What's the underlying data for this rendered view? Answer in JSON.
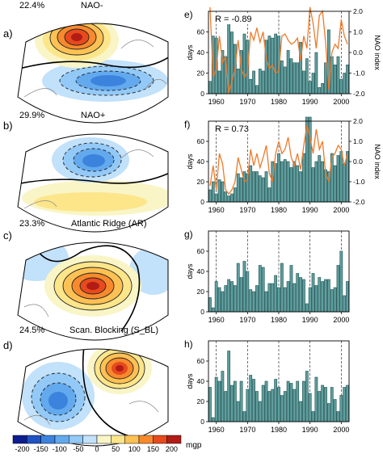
{
  "maps": [
    {
      "letter": "a)",
      "percent": "22.4%",
      "title": "NAO-"
    },
    {
      "letter": "b)",
      "percent": "29.9%",
      "title": "NAO+"
    },
    {
      "letter": "c)",
      "percent": "23.3%",
      "title": "Atlantic Ridge (AR)"
    },
    {
      "letter": "d)",
      "percent": "24.5%",
      "title": "Scan. Blocking (S_BL)"
    }
  ],
  "colorbar": {
    "ticks": [
      "-200",
      "-150",
      "-100",
      "-50",
      "0",
      "50",
      "100",
      "150",
      "200"
    ],
    "unit": "mgp",
    "colors": [
      "#0c1d8f",
      "#1f52c2",
      "#3c83dd",
      "#63a9ee",
      "#93c9f6",
      "#c2e1fa",
      "#f9f5c6",
      "#fde58a",
      "#fdc154",
      "#f88a2d",
      "#e64a1d",
      "#b11c17"
    ]
  },
  "chart_data": [
    {
      "type": "bar",
      "panel": "e)",
      "ylabel": "days",
      "y2label": "NAO index",
      "annotation": "R = -0.89",
      "x": [
        1958,
        1959,
        1960,
        1961,
        1962,
        1963,
        1964,
        1965,
        1966,
        1967,
        1968,
        1969,
        1970,
        1971,
        1972,
        1973,
        1974,
        1975,
        1976,
        1977,
        1978,
        1979,
        1980,
        1981,
        1982,
        1983,
        1984,
        1985,
        1986,
        1987,
        1988,
        1989,
        1990,
        1991,
        1992,
        1993,
        1994,
        1995,
        1996,
        1997,
        1998,
        1999,
        2000,
        2001,
        2002
      ],
      "values": [
        12,
        56,
        54,
        22,
        42,
        36,
        70,
        60,
        48,
        24,
        42,
        58,
        52,
        14,
        22,
        8,
        24,
        22,
        52,
        56,
        54,
        58,
        56,
        32,
        26,
        42,
        34,
        30,
        30,
        50,
        22,
        34,
        12,
        20,
        40,
        6,
        10,
        30,
        62,
        36,
        28,
        36,
        14,
        20,
        28
      ],
      "line_values": [
        2.2,
        -1.2,
        -0.8,
        0.8,
        -0.5,
        -0.2,
        -2.0,
        -1.4,
        -0.8,
        0.6,
        -0.8,
        -1.2,
        -1.0,
        1.0,
        0.6,
        1.2,
        0.5,
        1.0,
        -0.3,
        -0.8,
        -0.6,
        -1.0,
        -0.9,
        0.8,
        0.9,
        0.6,
        0.4,
        0.5,
        0.7,
        -0.4,
        0.8,
        0.2,
        2.2,
        1.4,
        0.2,
        1.8,
        2.0,
        0.5,
        -1.8,
        0.0,
        0.4,
        0.2,
        1.6,
        0.8,
        0.4
      ],
      "ylim": [
        0,
        80
      ],
      "y2lim": [
        -2,
        2
      ],
      "xticks": [
        "1960",
        "1970",
        "1980",
        "1990",
        "2000"
      ],
      "yticks": [
        "0",
        "20",
        "40",
        "60"
      ],
      "y2ticks": [
        "-2.0",
        "-1.0",
        "0.0",
        "1.0",
        "2.0"
      ]
    },
    {
      "type": "bar",
      "panel": "f)",
      "ylabel": "days",
      "y2label": "NAO index",
      "annotation": "R = 0.73",
      "x": [
        1958,
        1959,
        1960,
        1961,
        1962,
        1963,
        1964,
        1965,
        1966,
        1967,
        1968,
        1969,
        1970,
        1971,
        1972,
        1973,
        1974,
        1975,
        1976,
        1977,
        1978,
        1979,
        1980,
        1981,
        1982,
        1983,
        1984,
        1985,
        1986,
        1987,
        1988,
        1989,
        1990,
        1991,
        1992,
        1993,
        1994,
        1995,
        1996,
        1997,
        1998,
        1999,
        2000,
        2001,
        2002
      ],
      "values": [
        12,
        20,
        8,
        22,
        20,
        10,
        6,
        8,
        14,
        28,
        24,
        30,
        28,
        36,
        30,
        30,
        26,
        24,
        30,
        14,
        40,
        38,
        48,
        40,
        42,
        40,
        34,
        40,
        36,
        30,
        48,
        84,
        84,
        34,
        40,
        46,
        40,
        32,
        30,
        48,
        36,
        46,
        50,
        38,
        50
      ],
      "line_values": [
        -1.2,
        -0.2,
        -1.4,
        0.4,
        -0.1,
        -1.4,
        -1.6,
        -1.4,
        -1.0,
        0.2,
        -0.4,
        -1.0,
        -0.9,
        0.6,
        -0.2,
        0.4,
        -0.3,
        0.2,
        0.8,
        -0.6,
        -1.0,
        0.4,
        1.0,
        0.4,
        0.6,
        1.2,
        0.2,
        -0.2,
        0.4,
        -0.4,
        0.8,
        1.8,
        1.2,
        0.4,
        1.6,
        0.6,
        1.0,
        -0.6,
        -1.0,
        0.2,
        0.4,
        0.8,
        0.6,
        -0.2,
        0.4
      ],
      "ylim": [
        0,
        80
      ],
      "y2lim": [
        -2,
        2
      ],
      "xticks": [
        "1960",
        "1970",
        "1980",
        "1990",
        "2000"
      ],
      "yticks": [
        "0",
        "20",
        "40",
        "60"
      ],
      "y2ticks": [
        "-2.0",
        "-1.0",
        "0.0",
        "1.0",
        "2.0"
      ]
    },
    {
      "type": "bar",
      "panel": "g)",
      "ylabel": "days",
      "x": [
        1958,
        1959,
        1960,
        1961,
        1962,
        1963,
        1964,
        1965,
        1966,
        1967,
        1968,
        1969,
        1970,
        1971,
        1972,
        1973,
        1974,
        1975,
        1976,
        1977,
        1978,
        1979,
        1980,
        1981,
        1982,
        1983,
        1984,
        1985,
        1986,
        1987,
        1988,
        1989,
        1990,
        1991,
        1992,
        1993,
        1994,
        1995,
        1996,
        1997,
        1998,
        1999,
        2000,
        2001,
        2002
      ],
      "values": [
        14,
        4,
        30,
        24,
        20,
        26,
        32,
        30,
        26,
        48,
        34,
        50,
        40,
        22,
        20,
        26,
        46,
        44,
        20,
        28,
        28,
        36,
        24,
        48,
        24,
        30,
        46,
        28,
        38,
        34,
        32,
        8,
        24,
        38,
        26,
        34,
        30,
        32,
        32,
        22,
        24,
        46,
        60,
        16,
        30
      ],
      "ylim": [
        0,
        80
      ],
      "xticks": [
        "1960",
        "1970",
        "1980",
        "1990",
        "2000"
      ],
      "yticks": [
        "0",
        "20",
        "40",
        "60"
      ]
    },
    {
      "type": "bar",
      "panel": "h)",
      "ylabel": "days",
      "x": [
        1958,
        1959,
        1960,
        1961,
        1962,
        1963,
        1964,
        1965,
        1966,
        1967,
        1968,
        1969,
        1970,
        1971,
        1972,
        1973,
        1974,
        1975,
        1976,
        1977,
        1978,
        1979,
        1980,
        1981,
        1982,
        1983,
        1984,
        1985,
        1986,
        1987,
        1988,
        1989,
        1990,
        1991,
        1992,
        1993,
        1994,
        1995,
        1996,
        1997,
        1998,
        1999,
        2000,
        2001,
        2002
      ],
      "values": [
        34,
        4,
        44,
        40,
        50,
        30,
        70,
        36,
        40,
        20,
        40,
        10,
        32,
        46,
        42,
        30,
        20,
        36,
        40,
        30,
        32,
        42,
        34,
        26,
        30,
        40,
        38,
        32,
        40,
        20,
        40,
        50,
        28,
        10,
        44,
        30,
        36,
        34,
        18,
        34,
        22,
        10,
        26,
        34,
        36
      ],
      "ylim": [
        0,
        80
      ],
      "xticks": [
        "1960",
        "1970",
        "1980",
        "1990",
        "2000"
      ],
      "yticks": [
        "0",
        "20",
        "40",
        "60"
      ]
    }
  ]
}
